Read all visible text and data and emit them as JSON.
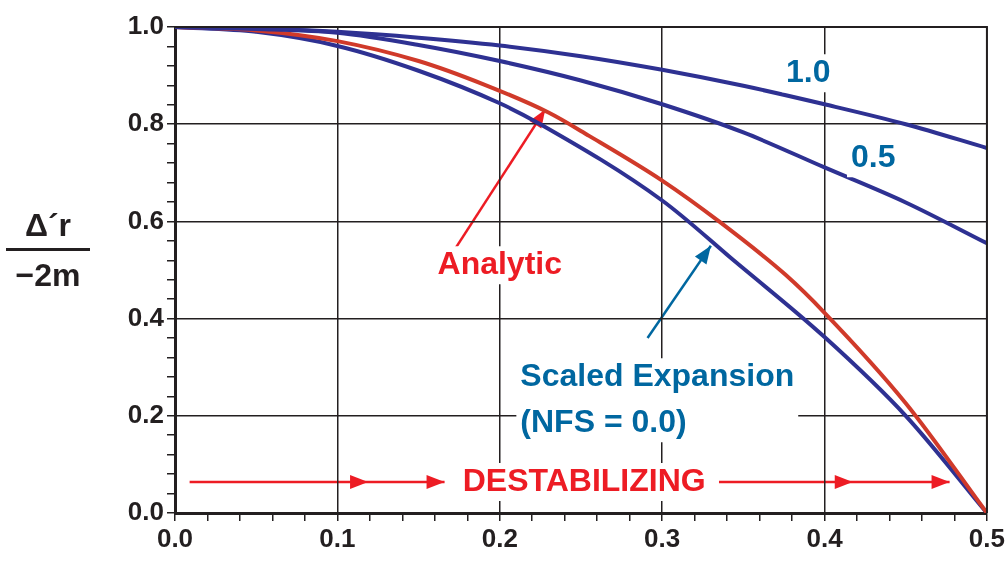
{
  "chart_data": {
    "type": "line",
    "ylabel": "Δ´r\n−2m",
    "xlim": [
      0,
      0.5
    ],
    "ylim": [
      0,
      1
    ],
    "xticks": [
      {
        "value": 0,
        "label": "0.0"
      },
      {
        "value": 0.02,
        "label": null
      },
      {
        "value": 0.04,
        "label": null
      },
      {
        "value": 0.06,
        "label": null
      },
      {
        "value": 0.08,
        "label": null
      },
      0.1,
      {
        "value": 0.12,
        "label": null
      },
      {
        "value": 0.14,
        "label": null
      },
      {
        "value": 0.16,
        "label": null
      },
      {
        "value": 0.18,
        "label": null
      },
      0.2,
      {
        "value": 0.22,
        "label": null
      },
      {
        "value": 0.24,
        "label": null
      },
      {
        "value": 0.26,
        "label": null
      },
      {
        "value": 0.28,
        "label": null
      },
      0.3,
      {
        "value": 0.32,
        "label": null
      },
      {
        "value": 0.34,
        "label": null
      },
      {
        "value": 0.36,
        "label": null
      },
      {
        "value": 0.38,
        "label": null
      },
      0.4,
      {
        "value": 0.42,
        "label": null
      },
      {
        "value": 0.44,
        "label": null
      },
      {
        "value": 0.46,
        "label": null
      },
      {
        "value": 0.48,
        "label": null
      },
      0.5
    ],
    "yticks": [
      {
        "value": 0,
        "label": "0.0"
      },
      {
        "value": 0.04,
        "label": null
      },
      {
        "value": 0.08,
        "label": null
      },
      {
        "value": 0.12,
        "label": null
      },
      {
        "value": 0.16,
        "label": null
      },
      0.2,
      {
        "value": 0.24,
        "label": null
      },
      {
        "value": 0.28,
        "label": null
      },
      {
        "value": 0.32,
        "label": null
      },
      {
        "value": 0.36,
        "label": null
      },
      0.4,
      {
        "value": 0.44,
        "label": null
      },
      {
        "value": 0.48,
        "label": null
      },
      {
        "value": 0.52,
        "label": null
      },
      {
        "value": 0.56,
        "label": null
      },
      0.6,
      {
        "value": 0.64,
        "label": null
      },
      {
        "value": 0.68,
        "label": null
      },
      {
        "value": 0.72,
        "label": null
      },
      {
        "value": 0.76,
        "label": null
      },
      0.8,
      {
        "value": 0.84,
        "label": null
      },
      {
        "value": 0.88,
        "label": null
      },
      {
        "value": 0.92,
        "label": null
      },
      {
        "value": 0.96,
        "label": null
      },
      {
        "value": 1,
        "label": "1.0"
      }
    ],
    "grid": true,
    "marker": "none",
    "line_style": "solid",
    "series": [
      {
        "name": "1.0",
        "color": "#2e3192",
        "x": [
          0,
          0.05,
          0.1,
          0.15,
          0.2,
          0.25,
          0.3,
          0.35,
          0.4,
          0.45,
          0.5
        ],
        "values": [
          1,
          0.997,
          0.99,
          0.978,
          0.962,
          0.94,
          0.912,
          0.879,
          0.841,
          0.8,
          0.751
        ]
      },
      {
        "name": "0.5",
        "color": "#2e3192",
        "x": [
          0,
          0.05,
          0.1,
          0.15,
          0.2,
          0.25,
          0.3,
          0.35,
          0.4,
          0.45,
          0.5
        ],
        "values": [
          1,
          0.996,
          0.988,
          0.963,
          0.93,
          0.89,
          0.841,
          0.783,
          0.711,
          0.639,
          0.555
        ]
      },
      {
        "name": "Analytic",
        "color": "#d03a2a",
        "x": [
          0,
          0.05,
          0.1,
          0.15,
          0.19,
          0.23,
          0.255,
          0.3,
          0.335,
          0.376,
          0.4,
          0.45,
          0.5
        ],
        "values": [
          1,
          0.993,
          0.971,
          0.93,
          0.882,
          0.824,
          0.776,
          0.684,
          0.6,
          0.49,
          0.412,
          0.226,
          0
        ]
      },
      {
        "name": "Scaled Expansion (NFS = 0.0)",
        "color": "#2e3192",
        "x": [
          0,
          0.05,
          0.1,
          0.15,
          0.2,
          0.225,
          0.3,
          0.344,
          0.4,
          0.45,
          0.5
        ],
        "values": [
          1,
          0.99,
          0.961,
          0.91,
          0.843,
          0.8,
          0.643,
          0.52,
          0.362,
          0.2,
          0
        ]
      }
    ],
    "annotations": [
      "DESTABILIZING"
    ]
  }
}
